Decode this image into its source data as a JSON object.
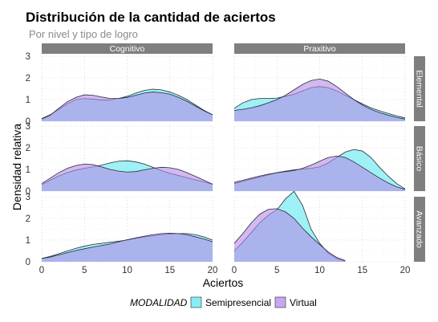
{
  "chart_data": {
    "type": "area",
    "subtype": "density",
    "title": "Distribución de la cantidad de aciertos",
    "subtitle": "Por nivel y tipo de logro",
    "xlabel": "Aciertos",
    "ylabel": "Densidad relativa",
    "xlim": [
      0,
      20
    ],
    "ylim": [
      0,
      3
    ],
    "x_ticks": [
      0,
      5,
      10,
      15,
      20
    ],
    "y_ticks": [
      0,
      1,
      2,
      3
    ],
    "grid": true,
    "legend": {
      "title": "MODALIDAD",
      "position": "bottom",
      "entries": [
        {
          "name": "Semipresencial",
          "color": "#5ee8ef"
        },
        {
          "name": "Virtual",
          "color": "#b48be8"
        }
      ]
    },
    "facet_columns": [
      "Cognitivo",
      "Praxitivo"
    ],
    "facet_rows": [
      "Elemental",
      "Básico",
      "Avanzado"
    ],
    "x": [
      0,
      1,
      2,
      3,
      4,
      5,
      6,
      7,
      8,
      9,
      10,
      11,
      12,
      13,
      14,
      15,
      16,
      17,
      18,
      19,
      20
    ],
    "panels": [
      {
        "col": "Cognitivo",
        "row": "Elemental",
        "series": [
          {
            "name": "Semipresencial",
            "x_start": 0,
            "x_end": 20,
            "values": [
              0.12,
              0.3,
              0.55,
              0.8,
              1.0,
              1.05,
              1.02,
              0.98,
              0.98,
              1.05,
              1.15,
              1.3,
              1.42,
              1.48,
              1.45,
              1.35,
              1.2,
              1.0,
              0.75,
              0.5,
              0.3
            ]
          },
          {
            "name": "Virtual",
            "x_start": 0,
            "x_end": 20,
            "values": [
              0.1,
              0.28,
              0.6,
              0.9,
              1.1,
              1.22,
              1.2,
              1.12,
              1.05,
              1.05,
              1.1,
              1.2,
              1.3,
              1.35,
              1.32,
              1.25,
              1.1,
              0.92,
              0.7,
              0.48,
              0.3
            ]
          }
        ]
      },
      {
        "col": "Praxitivo",
        "row": "Elemental",
        "series": [
          {
            "name": "Semipresencial",
            "x_start": 0,
            "x_end": 20,
            "values": [
              0.6,
              0.85,
              1.0,
              1.05,
              1.05,
              1.07,
              1.15,
              1.25,
              1.4,
              1.55,
              1.6,
              1.55,
              1.4,
              1.2,
              1.0,
              0.8,
              0.62,
              0.48,
              0.36,
              0.25,
              0.15
            ]
          },
          {
            "name": "Virtual",
            "x_start": 0,
            "x_end": 20,
            "values": [
              0.5,
              0.55,
              0.62,
              0.72,
              0.85,
              1.0,
              1.2,
              1.45,
              1.7,
              1.88,
              1.95,
              1.85,
              1.6,
              1.3,
              1.0,
              0.75,
              0.55,
              0.4,
              0.28,
              0.18,
              0.1
            ]
          }
        ]
      },
      {
        "col": "Cognitivo",
        "row": "Básico",
        "series": [
          {
            "name": "Semipresencial",
            "x_start": 0,
            "x_end": 20,
            "values": [
              0.3,
              0.5,
              0.7,
              0.85,
              0.97,
              1.05,
              1.12,
              1.2,
              1.3,
              1.38,
              1.4,
              1.35,
              1.25,
              1.1,
              0.95,
              0.82,
              0.72,
              0.62,
              0.52,
              0.42,
              0.32
            ]
          },
          {
            "name": "Virtual",
            "x_start": 0,
            "x_end": 20,
            "values": [
              0.35,
              0.6,
              0.85,
              1.05,
              1.18,
              1.25,
              1.22,
              1.12,
              1.0,
              0.92,
              0.88,
              0.9,
              0.98,
              1.05,
              1.1,
              1.08,
              1.0,
              0.85,
              0.68,
              0.5,
              0.32
            ]
          }
        ]
      },
      {
        "col": "Praxitivo",
        "row": "Básico",
        "series": [
          {
            "name": "Semipresencial",
            "x_start": 0,
            "x_end": 20,
            "values": [
              0.35,
              0.45,
              0.55,
              0.65,
              0.75,
              0.85,
              0.92,
              0.98,
              1.02,
              1.05,
              1.12,
              1.3,
              1.55,
              1.8,
              1.92,
              1.85,
              1.55,
              1.1,
              0.7,
              0.35,
              0.1
            ]
          },
          {
            "name": "Virtual",
            "x_start": 0,
            "x_end": 20,
            "values": [
              0.4,
              0.5,
              0.6,
              0.7,
              0.78,
              0.85,
              0.9,
              0.95,
              1.05,
              1.2,
              1.38,
              1.55,
              1.62,
              1.55,
              1.35,
              1.1,
              0.85,
              0.6,
              0.38,
              0.2,
              0.08
            ]
          }
        ]
      },
      {
        "col": "Cognitivo",
        "row": "Avanzado",
        "series": [
          {
            "name": "Semipresencial",
            "x_start": 0,
            "x_end": 20,
            "values": [
              0.15,
              0.25,
              0.37,
              0.5,
              0.62,
              0.72,
              0.8,
              0.85,
              0.9,
              0.95,
              1.0,
              1.08,
              1.15,
              1.2,
              1.25,
              1.28,
              1.3,
              1.3,
              1.25,
              1.15,
              1.0
            ]
          },
          {
            "name": "Virtual",
            "x_start": 0,
            "x_end": 20,
            "values": [
              0.15,
              0.22,
              0.32,
              0.42,
              0.52,
              0.6,
              0.68,
              0.75,
              0.82,
              0.92,
              1.02,
              1.1,
              1.18,
              1.25,
              1.3,
              1.32,
              1.3,
              1.25,
              1.15,
              1.05,
              0.92
            ]
          }
        ]
      },
      {
        "col": "Praxitivo",
        "row": "Avanzado",
        "series": [
          {
            "name": "Semipresencial",
            "x_start": 0,
            "x_end": 13,
            "values": [
              0.5,
              0.9,
              1.35,
              1.8,
              2.15,
              2.4,
              2.9,
              3.25,
              2.6,
              1.5,
              0.85,
              0.4,
              0.15,
              0.03
            ]
          },
          {
            "name": "Virtual",
            "x_start": 0,
            "x_end": 13,
            "values": [
              0.85,
              1.3,
              1.8,
              2.2,
              2.42,
              2.45,
              2.3,
              2.0,
              1.55,
              1.15,
              0.8,
              0.45,
              0.2,
              0.05
            ]
          }
        ]
      }
    ]
  }
}
